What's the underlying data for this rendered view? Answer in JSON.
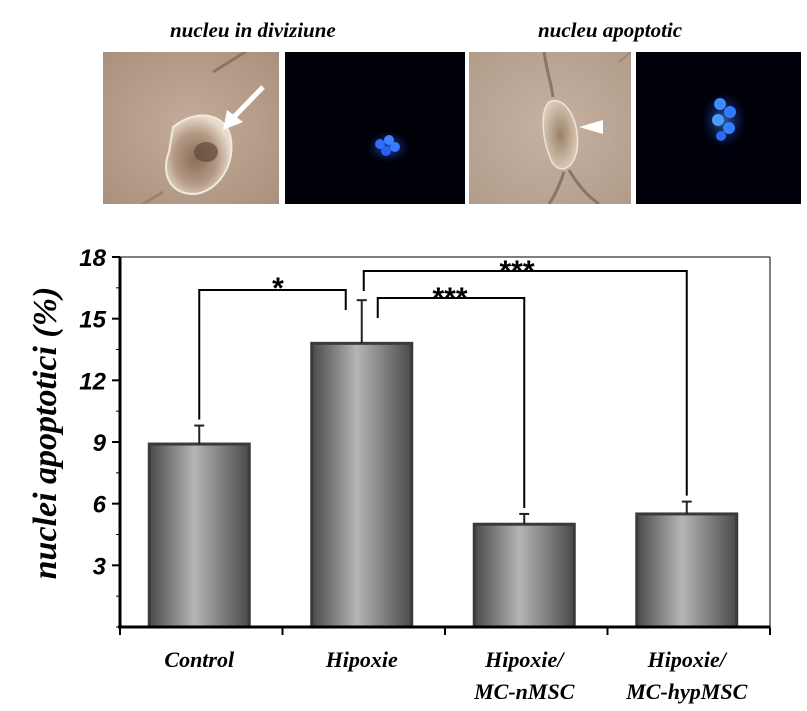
{
  "panels": {
    "left_title": "nucleu in diviziune",
    "right_title": "nucleu apoptotic"
  },
  "chart_data": {
    "type": "bar",
    "ylabel": "nuclei apoptotici (%)",
    "ylim": [
      0,
      18
    ],
    "yticks": [
      "3",
      "6",
      "9",
      "12",
      "15",
      "18"
    ],
    "categories": [
      [
        "Control"
      ],
      [
        "Hipoxie"
      ],
      [
        "Hipoxie/",
        "MC-nMSC"
      ],
      [
        "Hipoxie/",
        "MC-hypMSC"
      ]
    ],
    "values": [
      8.9,
      13.8,
      5.0,
      5.5
    ],
    "errors": [
      0.9,
      2.1,
      0.5,
      0.6
    ],
    "significance": [
      {
        "from": 0,
        "to": 1,
        "label": "*"
      },
      {
        "from": 1,
        "to": 2,
        "label": "***"
      },
      {
        "from": 1,
        "to": 3,
        "label": "***"
      }
    ],
    "colors": {
      "bar_light": "#b5b5b5",
      "bar_dark": "#4a4a4a",
      "border": "#3a3a3a"
    }
  }
}
